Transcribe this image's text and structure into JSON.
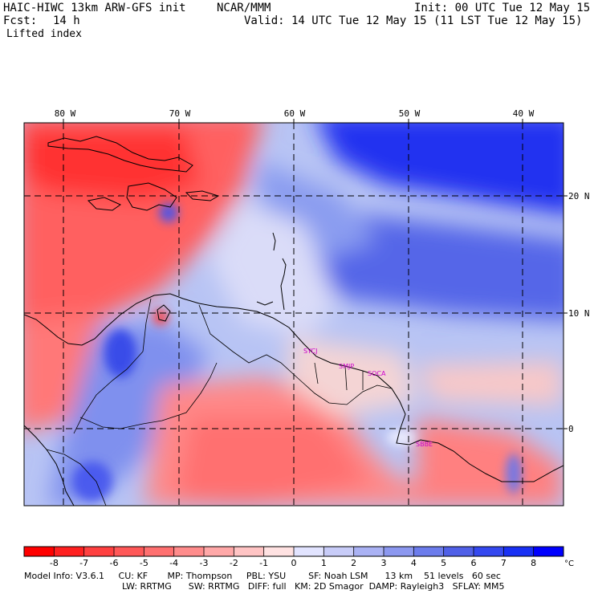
{
  "header": {
    "model": "HAIC-HIWC 13km ARW-GFS init",
    "org": "NCAR/MMM",
    "init": "Init: 00 UTC Tue 12 May 15",
    "fcst_label": "Fcst:",
    "fcst_value": "14 h",
    "valid": "Valid: 14 UTC Tue 12 May 15 (11 LST Tue 12 May 15)",
    "field": "Lifted index"
  },
  "map": {
    "lon_labels": [
      "80 W",
      "70 W",
      "60 W",
      "50 W",
      "40 W"
    ],
    "lat_labels": [
      "20 N",
      "10 N",
      "0"
    ],
    "stations": [
      "SYCJ",
      "SMJP",
      "SOCA",
      "SBBE"
    ],
    "colors": {
      "negative": "#ff0000",
      "neutral": "#ffffff",
      "positive": "#0000ff",
      "grid": "#000000"
    }
  },
  "colorbar": {
    "labels": [
      "-8",
      "-7",
      "-6",
      "-5",
      "-4",
      "-3",
      "-2",
      "-1",
      "0",
      "1",
      "2",
      "3",
      "4",
      "5",
      "6",
      "7",
      "8"
    ],
    "unit": "°C"
  },
  "footer": {
    "line1": "Model Info: V3.6.1     CU: KF       MP: Thompson     PBL: YSU        SF: Noah LSM      13 km    51 levels   60 sec",
    "line2": "LW: RRTMG      SW: RRTMG   DIFF: full   KM: 2D Smagor  DAMP: Rayleigh3   SFLAY: MM5"
  }
}
